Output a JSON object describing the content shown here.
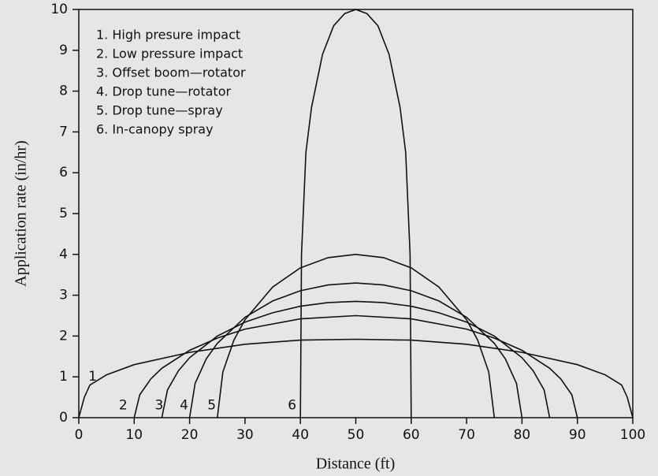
{
  "chart_data": {
    "type": "line",
    "xlabel": "Distance (ft)",
    "ylabel": "Application rate (in/hr)",
    "xlim": [
      0,
      100
    ],
    "xticks": [
      0,
      10,
      20,
      30,
      40,
      50,
      60,
      70,
      80,
      90,
      100
    ],
    "ylim": [
      0,
      10
    ],
    "yticks": [
      0,
      1,
      2,
      3,
      4,
      5,
      6,
      7,
      8,
      9,
      10
    ],
    "grid": false,
    "legend": "upper left",
    "annotations": [
      "1",
      "2",
      "3",
      "4",
      "5",
      "6"
    ],
    "series": [
      {
        "name": "1. High presure impact",
        "color": "#111111",
        "x": [
          0,
          1,
          2,
          5,
          10,
          20,
          30,
          40,
          50,
          60,
          70,
          80,
          90,
          95,
          98,
          99,
          100
        ],
        "values": [
          0,
          0.5,
          0.8,
          1.05,
          1.3,
          1.6,
          1.8,
          1.9,
          1.92,
          1.9,
          1.8,
          1.6,
          1.3,
          1.05,
          0.8,
          0.5,
          0
        ]
      },
      {
        "name": "2. Low pressure impact",
        "color": "#111111",
        "x": [
          10,
          11,
          13,
          15,
          20,
          25,
          30,
          40,
          50,
          60,
          70,
          75,
          80,
          85,
          87,
          89,
          90
        ],
        "values": [
          0,
          0.56,
          0.95,
          1.21,
          1.65,
          1.95,
          2.17,
          2.42,
          2.5,
          2.42,
          2.17,
          1.95,
          1.65,
          1.21,
          0.95,
          0.56,
          0
        ]
      },
      {
        "name": "3. Offset boom—rotator",
        "color": "#111111",
        "x": [
          15,
          16,
          18,
          20,
          25,
          30,
          35,
          40,
          45,
          50,
          55,
          60,
          65,
          70,
          75,
          80,
          82,
          84,
          85
        ],
        "values": [
          0,
          0.68,
          1.15,
          1.47,
          2.0,
          2.34,
          2.57,
          2.73,
          2.82,
          2.85,
          2.82,
          2.73,
          2.57,
          2.34,
          2.0,
          1.47,
          1.15,
          0.68,
          0
        ]
      },
      {
        "name": "4. Drop tune—rotator",
        "color": "#111111",
        "x": [
          20,
          21,
          23,
          25,
          30,
          35,
          40,
          45,
          50,
          55,
          60,
          65,
          70,
          75,
          77,
          79,
          80
        ],
        "values": [
          0,
          0.84,
          1.44,
          1.82,
          2.46,
          2.86,
          3.11,
          3.25,
          3.3,
          3.25,
          3.11,
          2.86,
          2.46,
          1.82,
          1.44,
          0.84,
          0
        ]
      },
      {
        "name": "5. Drop tune—spray",
        "color": "#111111",
        "x": [
          25,
          26,
          28,
          30,
          35,
          40,
          45,
          50,
          55,
          60,
          65,
          70,
          72,
          74,
          75
        ],
        "values": [
          0,
          1.12,
          1.9,
          2.4,
          3.2,
          3.67,
          3.92,
          4,
          3.92,
          3.67,
          3.2,
          2.4,
          1.9,
          1.12,
          0
        ]
      },
      {
        "name": "6. In-canopy spray",
        "color": "#111111",
        "x": [
          40,
          40.2,
          41,
          42,
          44,
          46,
          48,
          50,
          52,
          54,
          56,
          58,
          59,
          59.8,
          60
        ],
        "values": [
          0,
          4,
          6.5,
          7.6,
          8.9,
          9.6,
          9.9,
          10,
          9.9,
          9.6,
          8.9,
          7.6,
          6.5,
          4,
          0
        ]
      }
    ]
  }
}
